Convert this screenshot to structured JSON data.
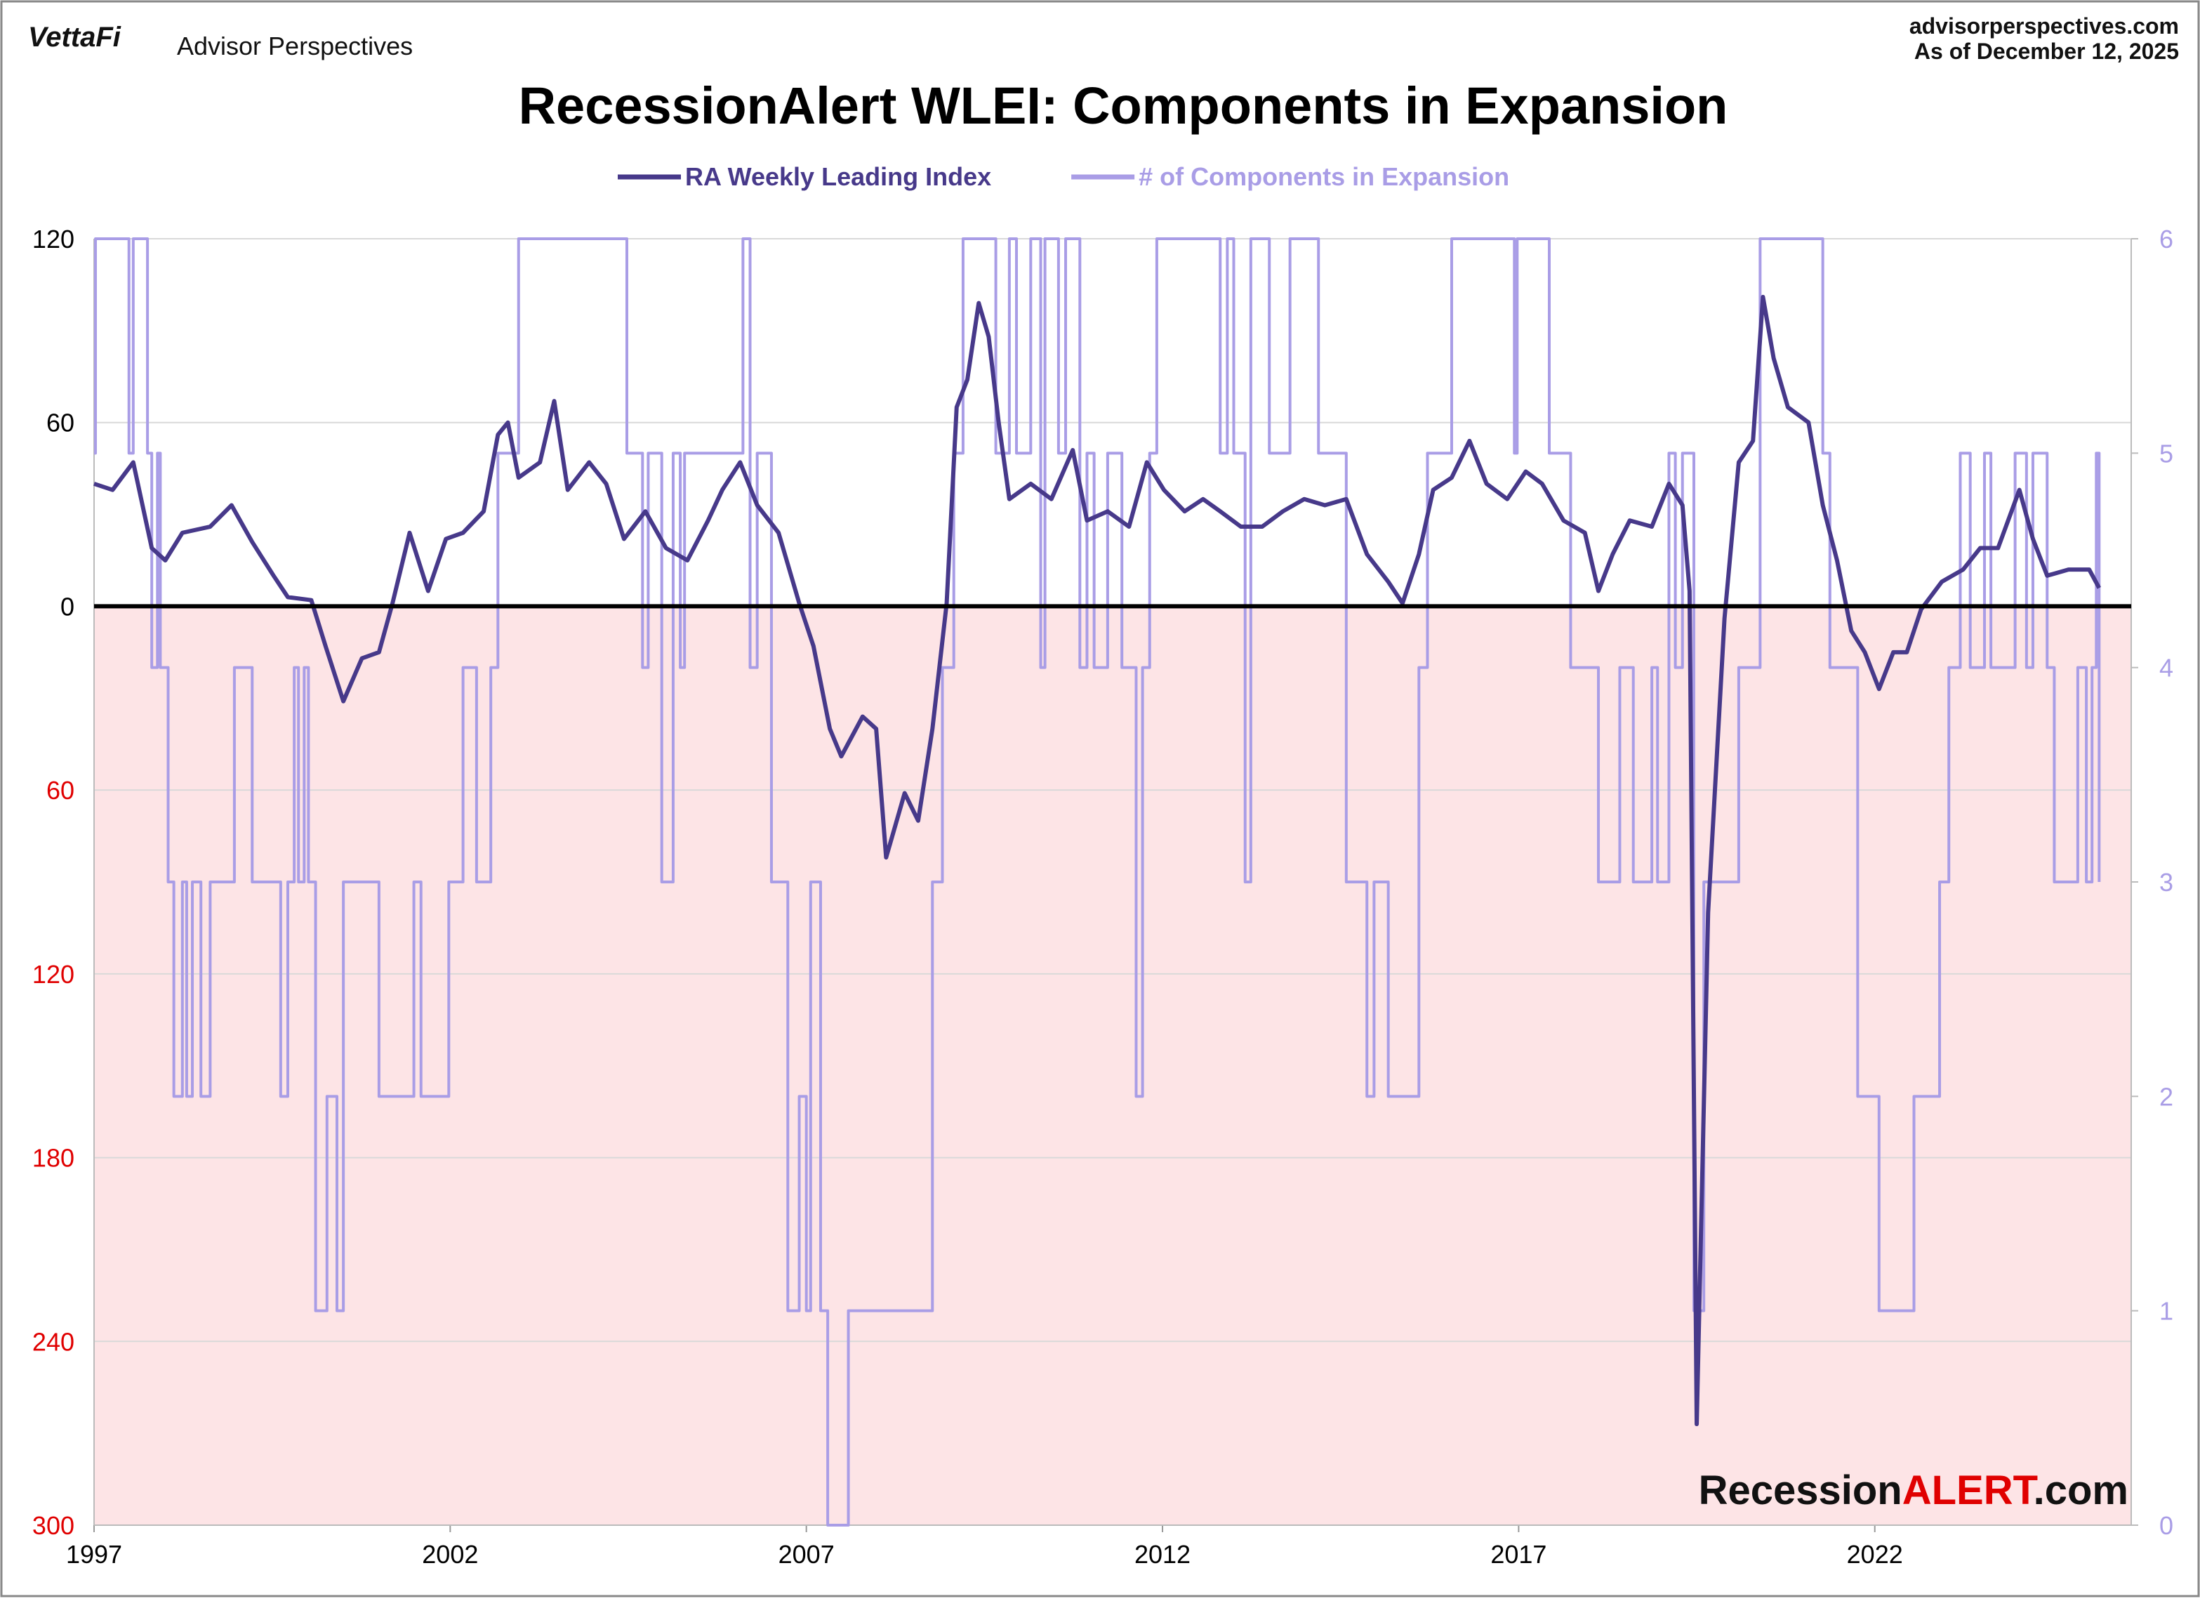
{
  "header": {
    "brand": "VettaFi",
    "publisher": "Advisor Perspectives",
    "site": "advisorperspectives.com",
    "date": "As of December 12, 2025"
  },
  "watermark": {
    "prefix": "Recession",
    "highlight": "ALERT",
    "suffix": ".com"
  },
  "chart_data": {
    "type": "line",
    "title": "RecessionAlert WLEI: Components in Expansion",
    "xlim": [
      1997,
      2025.6
    ],
    "xticks": [
      1997,
      2002,
      2007,
      2012,
      2017,
      2022
    ],
    "ylim": [
      -300,
      120
    ],
    "yticks": [
      120,
      60,
      0,
      {
        "value": -60,
        "label": "60"
      },
      {
        "value": -120,
        "label": "120"
      },
      {
        "value": -180,
        "label": "180"
      },
      {
        "value": -240,
        "label": "240"
      },
      {
        "value": -300,
        "label": "300"
      }
    ],
    "y2lim": [
      0,
      6
    ],
    "y2ticks": [
      0,
      1,
      2,
      3,
      4,
      5,
      6
    ],
    "grid": true,
    "zero_line": true,
    "below_zero_fill": "#fde4e6",
    "negative_tick_color": "#e00000",
    "legend": "top",
    "series": [
      {
        "name": "RA Weekly Leading Index",
        "color": "#47398a",
        "step": false,
        "x": [
          1997.0,
          1997.26,
          1997.55,
          1997.81,
          1998.0,
          1998.24,
          1998.63,
          1998.93,
          1999.22,
          1999.52,
          1999.72,
          2000.05,
          2000.25,
          2000.5,
          2000.76,
          2001.0,
          2001.19,
          2001.43,
          2001.69,
          2001.94,
          2002.18,
          2002.47,
          2002.67,
          2002.81,
          2002.96,
          2003.26,
          2003.46,
          2003.65,
          2003.95,
          2004.19,
          2004.44,
          2004.74,
          2005.03,
          2005.33,
          2005.62,
          2005.82,
          2006.07,
          2006.31,
          2006.61,
          2006.9,
          2007.1,
          2007.33,
          2007.49,
          2007.79,
          2007.98,
          2008.12,
          2008.38,
          2008.57,
          2008.77,
          2008.97,
          2009.11,
          2009.26,
          2009.42,
          2009.56,
          2009.7,
          2009.85,
          2010.15,
          2010.44,
          2010.74,
          2010.94,
          2011.23,
          2011.53,
          2011.78,
          2012.02,
          2012.31,
          2012.57,
          2012.81,
          2013.1,
          2013.4,
          2013.69,
          2013.99,
          2014.28,
          2014.58,
          2014.87,
          2015.17,
          2015.37,
          2015.6,
          2015.8,
          2016.06,
          2016.31,
          2016.55,
          2016.84,
          2017.1,
          2017.33,
          2017.63,
          2017.93,
          2018.12,
          2018.32,
          2018.56,
          2018.87,
          2019.11,
          2019.3,
          2019.4,
          2019.5,
          2019.66,
          2019.89,
          2020.09,
          2020.29,
          2020.43,
          2020.58,
          2020.78,
          2021.07,
          2021.27,
          2021.47,
          2021.67,
          2021.86,
          2022.06,
          2022.26,
          2022.45,
          2022.65,
          2022.94,
          2023.24,
          2023.48,
          2023.73,
          2024.03,
          2024.22,
          2024.42,
          2024.72,
          2025.01,
          2025.15
        ],
        "values": [
          40,
          38,
          47,
          19,
          15,
          24,
          26,
          33,
          21,
          10,
          3,
          2,
          -13,
          -31,
          -17,
          -15,
          1,
          24,
          5,
          22,
          24,
          31,
          56,
          60,
          42,
          47,
          67,
          38,
          47,
          40,
          22,
          31,
          19,
          15,
          28,
          38,
          47,
          33,
          24,
          1,
          -13,
          -40,
          -49,
          -36,
          -40,
          -82,
          -61,
          -70,
          -40,
          1,
          65,
          74,
          99,
          88,
          60,
          35,
          40,
          35,
          51,
          28,
          31,
          26,
          47,
          38,
          31,
          35,
          31,
          26,
          26,
          31,
          35,
          33,
          35,
          17,
          8,
          1,
          17,
          38,
          42,
          54,
          40,
          35,
          44,
          40,
          28,
          24,
          5,
          17,
          28,
          26,
          40,
          33,
          5,
          -267,
          -100,
          -4,
          47,
          54,
          101,
          81,
          65,
          60,
          33,
          15,
          -8,
          -15,
          -27,
          -15,
          -15,
          -1,
          8,
          12,
          19,
          19,
          38,
          22,
          10,
          12,
          12,
          6
        ]
      },
      {
        "name": "# of Components in Expansion",
        "color": "#a99de6",
        "axis": "y2",
        "step": true,
        "x": [
          1997.0,
          1997.02,
          1997.49,
          1997.55,
          1997.75,
          1997.81,
          1997.89,
          1997.93,
          1998.04,
          1998.12,
          1998.24,
          1998.3,
          1998.38,
          1998.5,
          1998.63,
          1998.97,
          1999.22,
          1999.62,
          1999.72,
          1999.81,
          1999.87,
          1999.95,
          2000.01,
          2000.11,
          2000.27,
          2000.41,
          2000.5,
          2001.0,
          2001.49,
          2001.59,
          2001.98,
          2002.18,
          2002.37,
          2002.57,
          2002.67,
          2002.96,
          2004.48,
          2004.7,
          2004.78,
          2004.97,
          2005.13,
          2005.23,
          2005.29,
          2006.11,
          2006.21,
          2006.31,
          2006.51,
          2006.74,
          2006.9,
          2007.0,
          2007.06,
          2007.2,
          2007.3,
          2007.59,
          2008.77,
          2008.91,
          2009.07,
          2009.2,
          2009.66,
          2009.85,
          2009.95,
          2010.15,
          2010.29,
          2010.35,
          2010.54,
          2010.64,
          2010.84,
          2010.94,
          2011.04,
          2011.23,
          2011.43,
          2011.63,
          2011.72,
          2011.82,
          2011.92,
          2012.81,
          2012.91,
          2013.0,
          2013.16,
          2013.24,
          2013.5,
          2013.79,
          2014.19,
          2014.58,
          2014.87,
          2014.97,
          2015.17,
          2015.6,
          2015.72,
          2016.06,
          2016.94,
          2016.98,
          2017.43,
          2017.73,
          2018.12,
          2018.42,
          2018.61,
          2018.87,
          2018.95,
          2019.11,
          2019.2,
          2019.3,
          2019.46,
          2019.6,
          2020.09,
          2020.39,
          2021.27,
          2021.37,
          2021.76,
          2022.06,
          2022.55,
          2022.91,
          2023.04,
          2023.2,
          2023.34,
          2023.54,
          2023.63,
          2023.97,
          2024.13,
          2024.22,
          2024.42,
          2024.52,
          2024.85,
          2024.97,
          2025.05,
          2025.11,
          2025.15
        ],
        "values": [
          5,
          6,
          5,
          6,
          5,
          4,
          5,
          4,
          3,
          2,
          3,
          2,
          3,
          2,
          3,
          4,
          3,
          2,
          3,
          4,
          3,
          4,
          3,
          1,
          2,
          1,
          3,
          2,
          3,
          2,
          3,
          4,
          3,
          4,
          5,
          6,
          5,
          4,
          5,
          3,
          5,
          4,
          5,
          6,
          4,
          5,
          3,
          1,
          2,
          1,
          3,
          1,
          0,
          1,
          3,
          4,
          5,
          6,
          5,
          6,
          5,
          6,
          4,
          6,
          5,
          6,
          4,
          5,
          4,
          5,
          4,
          2,
          4,
          5,
          6,
          5,
          6,
          5,
          3,
          6,
          5,
          6,
          5,
          3,
          2,
          3,
          2,
          4,
          5,
          6,
          5,
          6,
          5,
          4,
          3,
          4,
          3,
          4,
          3,
          5,
          4,
          5,
          1,
          3,
          4,
          6,
          5,
          4,
          2,
          1,
          2,
          3,
          4,
          5,
          4,
          5,
          4,
          5,
          4,
          5,
          4,
          3,
          4,
          3,
          4,
          5,
          3
        ]
      }
    ]
  }
}
